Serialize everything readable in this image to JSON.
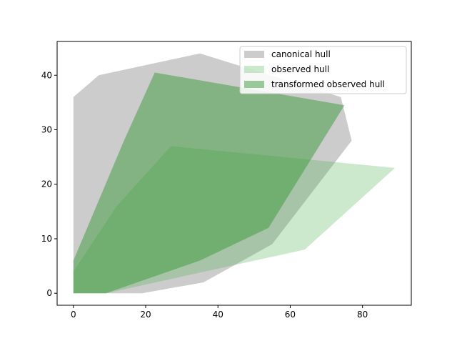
{
  "chart_data": {
    "type": "area",
    "title": "",
    "xlabel": "",
    "ylabel": "",
    "xlim": [
      -4.5,
      93.5
    ],
    "ylim": [
      -2.2,
      46.2
    ],
    "x_ticks": [
      0,
      20,
      40,
      60,
      80
    ],
    "y_ticks": [
      0,
      10,
      20,
      30,
      40
    ],
    "legend_position": "top-right",
    "grid": false,
    "series": [
      {
        "name": "canonical hull",
        "color": "#999999",
        "opacity": 0.5,
        "points": [
          [
            0,
            36
          ],
          [
            7,
            40
          ],
          [
            35,
            44
          ],
          [
            74,
            36
          ],
          [
            77,
            28
          ],
          [
            55,
            9
          ],
          [
            36,
            2
          ],
          [
            19,
            0
          ],
          [
            0,
            0
          ]
        ]
      },
      {
        "name": "observed hull",
        "color": "#4daf4a",
        "opacity": 0.28,
        "points": [
          [
            0,
            4
          ],
          [
            12,
            16
          ],
          [
            27,
            27
          ],
          [
            89,
            23
          ],
          [
            64,
            8
          ],
          [
            9,
            0
          ],
          [
            0,
            0
          ]
        ]
      },
      {
        "name": "transformed observed hull",
        "color": "#3a9a3a",
        "opacity": 0.5,
        "points": [
          [
            0,
            6
          ],
          [
            14,
            28
          ],
          [
            22.5,
            40.5
          ],
          [
            75,
            34.5
          ],
          [
            54,
            12
          ],
          [
            35,
            6
          ],
          [
            9,
            0
          ],
          [
            0,
            0
          ]
        ]
      }
    ]
  }
}
